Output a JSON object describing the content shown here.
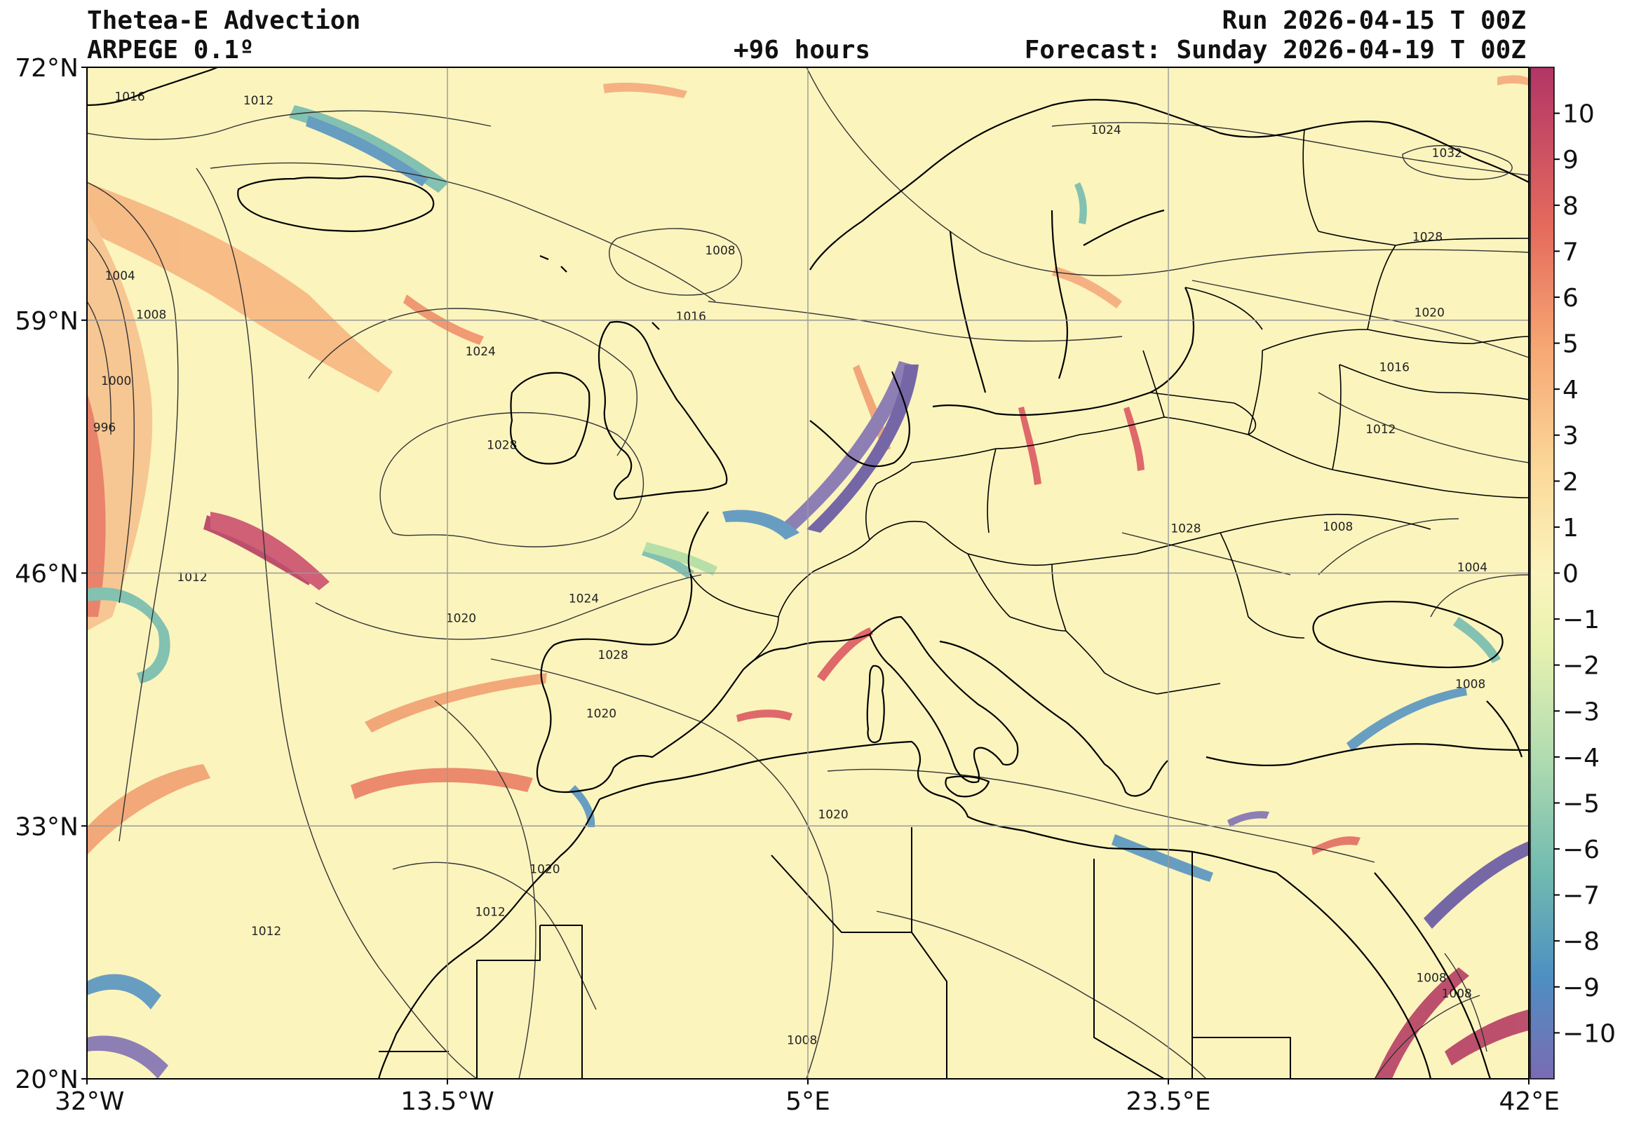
{
  "header": {
    "title": "Thetea-E Advection",
    "model": "ARPEGE 0.1º",
    "lead": "+96 hours",
    "run": "Run 2026-04-15 T 00Z",
    "forecast": "Forecast: Sunday 2026-04-19 T 00Z"
  },
  "map": {
    "lon_range": [
      -32,
      42
    ],
    "lat_range": [
      20,
      72
    ],
    "lon_ticks": [
      {
        "value": -32,
        "label": "32°W"
      },
      {
        "value": -13.5,
        "label": "13.5°W"
      },
      {
        "value": 5,
        "label": "5°E"
      },
      {
        "value": 23.5,
        "label": "23.5°E"
      },
      {
        "value": 42,
        "label": "42°E"
      }
    ],
    "lat_ticks": [
      {
        "value": 20,
        "label": "20°N"
      },
      {
        "value": 33,
        "label": "33°N"
      },
      {
        "value": 46,
        "label": "46°N"
      },
      {
        "value": 59,
        "label": "59°N"
      },
      {
        "value": 72,
        "label": "72°N"
      }
    ],
    "grid": true,
    "isobar_labels": [
      {
        "text": "1016",
        "lon": -29.8,
        "lat": 70.5
      },
      {
        "text": "1012",
        "lon": -23.2,
        "lat": 70.3
      },
      {
        "text": "1004",
        "lon": -30.3,
        "lat": 61.3
      },
      {
        "text": "1008",
        "lon": -28.7,
        "lat": 59.3
      },
      {
        "text": "1000",
        "lon": -30.5,
        "lat": 55.9
      },
      {
        "text": "996",
        "lon": -31.1,
        "lat": 53.5
      },
      {
        "text": "1012",
        "lon": -26.6,
        "lat": 45.8
      },
      {
        "text": "1008",
        "lon": 0.5,
        "lat": 62.6
      },
      {
        "text": "1016",
        "lon": -1.0,
        "lat": 59.2
      },
      {
        "text": "1024",
        "lon": -11.8,
        "lat": 57.4
      },
      {
        "text": "1028",
        "lon": -10.7,
        "lat": 52.6
      },
      {
        "text": "1020",
        "lon": -12.8,
        "lat": 43.7
      },
      {
        "text": "1024",
        "lon": -6.5,
        "lat": 44.7
      },
      {
        "text": "1028",
        "lon": -5.0,
        "lat": 41.8
      },
      {
        "text": "1020",
        "lon": -5.6,
        "lat": 38.8
      },
      {
        "text": "1020",
        "lon": 6.3,
        "lat": 33.6
      },
      {
        "text": "1020",
        "lon": -8.5,
        "lat": 30.8
      },
      {
        "text": "1012",
        "lon": -11.3,
        "lat": 28.6
      },
      {
        "text": "1012",
        "lon": -22.8,
        "lat": 27.6
      },
      {
        "text": "1008",
        "lon": 4.7,
        "lat": 22.0
      },
      {
        "text": "1024",
        "lon": 20.3,
        "lat": 68.8
      },
      {
        "text": "1032",
        "lon": 37.8,
        "lat": 67.6
      },
      {
        "text": "1028",
        "lon": 36.8,
        "lat": 63.3
      },
      {
        "text": "1020",
        "lon": 36.9,
        "lat": 59.4
      },
      {
        "text": "1016",
        "lon": 35.1,
        "lat": 56.6
      },
      {
        "text": "1012",
        "lon": 34.4,
        "lat": 53.4
      },
      {
        "text": "1008",
        "lon": 32.2,
        "lat": 48.4
      },
      {
        "text": "1004",
        "lon": 39.1,
        "lat": 46.3
      },
      {
        "text": "1028",
        "lon": 24.4,
        "lat": 48.3
      },
      {
        "text": "1008",
        "lon": 39.0,
        "lat": 40.3
      },
      {
        "text": "1008",
        "lon": 37.0,
        "lat": 25.2
      },
      {
        "text": "1008",
        "lon": 38.3,
        "lat": 24.4
      }
    ]
  },
  "colorbar": {
    "min": -11,
    "max": 11,
    "labels": [
      "10",
      "9",
      "8",
      "7",
      "6",
      "5",
      "4",
      "3",
      "2",
      "1",
      "0",
      "−1",
      "−2",
      "−3",
      "−4",
      "−5",
      "−6",
      "−7",
      "−8",
      "−9",
      "−10"
    ],
    "colors": [
      "#5e4fa2",
      "#3288bd",
      "#66c2a5",
      "#abdda4",
      "#e6f598",
      "#fdf6b0",
      "#fee08b",
      "#fdae61",
      "#f46d43",
      "#d53e4f",
      "#9e0142"
    ]
  }
}
